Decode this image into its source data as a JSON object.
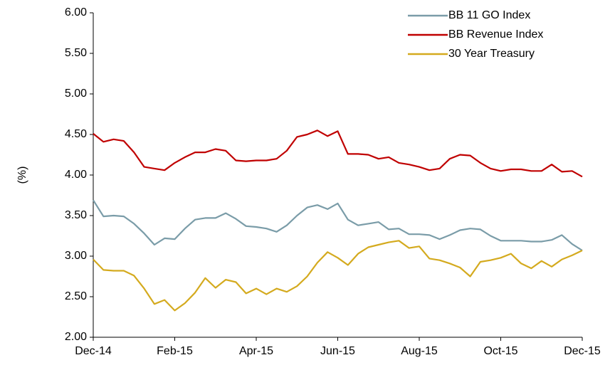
{
  "chart_data": {
    "type": "line",
    "y_label": "(%)",
    "categories": [
      "Dec-14",
      null,
      null,
      null,
      null,
      null,
      null,
      null,
      "Feb-15",
      null,
      null,
      null,
      null,
      null,
      null,
      null,
      "Apr-15",
      null,
      null,
      null,
      null,
      null,
      null,
      null,
      "Jun-15",
      null,
      null,
      null,
      null,
      null,
      null,
      null,
      "Aug-15",
      null,
      null,
      null,
      null,
      null,
      null,
      null,
      "Oct-15",
      null,
      null,
      null,
      null,
      null,
      null,
      null,
      "Dec-15"
    ],
    "series": [
      {
        "name": "BB 11 GO Index",
        "color": "#7a9ca8",
        "values": [
          3.69,
          3.49,
          3.5,
          3.49,
          3.4,
          3.28,
          3.14,
          3.22,
          3.21,
          3.34,
          3.45,
          3.47,
          3.47,
          3.53,
          3.46,
          3.37,
          3.36,
          3.34,
          3.3,
          3.38,
          3.5,
          3.6,
          3.63,
          3.58,
          3.65,
          3.45,
          3.38,
          3.4,
          3.42,
          3.33,
          3.34,
          3.27,
          3.27,
          3.26,
          3.21,
          3.26,
          3.32,
          3.34,
          3.33,
          3.25,
          3.19,
          3.19,
          3.19,
          3.18,
          3.18,
          3.2,
          3.26,
          3.15,
          3.07
        ]
      },
      {
        "name": "BB Revenue Index",
        "color": "#c00000",
        "values": [
          4.51,
          4.41,
          4.44,
          4.42,
          4.28,
          4.1,
          4.08,
          4.06,
          4.15,
          4.22,
          4.28,
          4.28,
          4.32,
          4.3,
          4.18,
          4.17,
          4.18,
          4.18,
          4.2,
          4.3,
          4.47,
          4.5,
          4.55,
          4.48,
          4.54,
          4.26,
          4.26,
          4.25,
          4.2,
          4.22,
          4.15,
          4.13,
          4.1,
          4.06,
          4.08,
          4.2,
          4.25,
          4.24,
          4.15,
          4.08,
          4.05,
          4.07,
          4.07,
          4.05,
          4.05,
          4.13,
          4.04,
          4.05,
          3.98
        ]
      },
      {
        "name": "30 Year Treasury",
        "color": "#d4aa1e",
        "values": [
          2.96,
          2.83,
          2.82,
          2.82,
          2.76,
          2.6,
          2.41,
          2.46,
          2.33,
          2.42,
          2.55,
          2.73,
          2.61,
          2.71,
          2.68,
          2.54,
          2.6,
          2.53,
          2.6,
          2.56,
          2.63,
          2.75,
          2.92,
          3.05,
          2.98,
          2.89,
          3.03,
          3.11,
          3.14,
          3.17,
          3.19,
          3.1,
          3.12,
          2.97,
          2.95,
          2.91,
          2.86,
          2.75,
          2.93,
          2.95,
          2.98,
          3.03,
          2.91,
          2.85,
          2.94,
          2.87,
          2.96,
          3.01,
          3.07
        ]
      }
    ],
    "ylim": [
      2,
      6
    ],
    "yticks": [
      {
        "value": 2,
        "label": "2.00"
      },
      {
        "value": 2.5,
        "label": "2.50"
      },
      {
        "value": 3,
        "label": "3.00"
      },
      {
        "value": 3.5,
        "label": "3.50"
      },
      {
        "value": 4,
        "label": "4.00"
      },
      {
        "value": 4.5,
        "label": "4.50"
      },
      {
        "value": 5,
        "label": "5.00"
      },
      {
        "value": 5.5,
        "label": "5.50"
      },
      {
        "value": 6,
        "label": "6.00"
      }
    ],
    "grid": false,
    "legend": "top-right"
  }
}
